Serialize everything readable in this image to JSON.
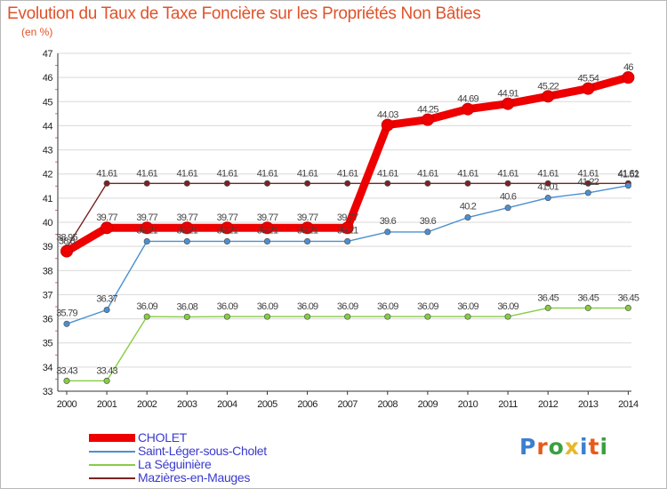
{
  "header": {
    "title": "Evolution du Taux de Taxe Foncière sur les Propriétés Non Bâties",
    "subtitle": "(en %)"
  },
  "colors": {
    "title": "#e0522a",
    "legend_text": "#3a3acf",
    "grid": "#d9d9d9"
  },
  "chart_data": {
    "type": "line",
    "title": "Evolution du Taux de Taxe Foncière sur les Propriétés Non Bâties",
    "ylabel": "(en %)",
    "xlabel": "",
    "x": [
      "2000",
      "2001",
      "2002",
      "2003",
      "2004",
      "2005",
      "2006",
      "2007",
      "2008",
      "2009",
      "2010",
      "2011",
      "2012",
      "2013",
      "2014"
    ],
    "ylim": [
      33,
      47
    ],
    "yticks": [
      33,
      34,
      35,
      36,
      37,
      38,
      39,
      40,
      41,
      42,
      43,
      44,
      45,
      46,
      47
    ],
    "grid": "horizontal",
    "legend_position": "bottom-left",
    "series": [
      {
        "name": "CHOLET",
        "color": "#ee0000",
        "values": [
          38.8,
          39.77,
          39.77,
          39.77,
          39.77,
          39.77,
          39.77,
          39.77,
          44.03,
          44.25,
          44.69,
          44.91,
          45.22,
          45.54,
          46
        ],
        "labels": [
          "38.8",
          "39.77",
          "39.77",
          "39.77",
          "39.77",
          "39.77",
          "39.77",
          "39.77",
          "44.03",
          "44.25",
          "44.69",
          "44.91",
          "45.22",
          "45.54",
          "46"
        ]
      },
      {
        "name": "Saint-Léger-sous-Cholet",
        "color": "#4a90d0",
        "values": [
          35.79,
          36.37,
          39.21,
          39.21,
          39.21,
          39.21,
          39.21,
          39.21,
          39.6,
          39.6,
          40.2,
          40.6,
          41.01,
          41.22,
          41.52
        ],
        "labels": [
          "35.79",
          "36.37",
          "39.21",
          "39.21",
          "39.21",
          "39.21",
          "39.21",
          "39.21",
          "39.6",
          "39.6",
          "40.2",
          "40.6",
          "41.01",
          "41.22",
          "41.52"
        ]
      },
      {
        "name": "La Séguinière",
        "color": "#88cc44",
        "values": [
          33.43,
          33.43,
          36.09,
          36.08,
          36.09,
          36.09,
          36.09,
          36.09,
          36.09,
          36.09,
          36.09,
          36.09,
          36.45,
          36.45,
          36.45
        ],
        "labels": [
          "33.43",
          "33.43",
          "36.09",
          "36.08",
          "36.09",
          "36.09",
          "36.09",
          "36.09",
          "36.09",
          "36.09",
          "36.09",
          "36.09",
          "36.45",
          "36.45",
          "36.45"
        ]
      },
      {
        "name": "Mazières-en-Mauges",
        "color": "#7a2222",
        "values": [
          38.95,
          41.61,
          41.61,
          41.61,
          41.61,
          41.61,
          41.61,
          41.61,
          41.61,
          41.61,
          41.61,
          41.61,
          41.61,
          41.61,
          41.61
        ],
        "labels": [
          "38.95",
          "41.61",
          "41.61",
          "41.61",
          "41.61",
          "41.61",
          "41.61",
          "41.61",
          "41.61",
          "41.61",
          "41.61",
          "41.61",
          "41.61",
          "41.61",
          "41.61"
        ]
      }
    ]
  },
  "legend": {
    "items": [
      {
        "label": "CHOLET",
        "color": "#ee0000"
      },
      {
        "label": "Saint-Léger-sous-Cholet",
        "color": "#4a90d0"
      },
      {
        "label": "La Séguinière",
        "color": "#88cc44"
      },
      {
        "label": "Mazières-en-Mauges",
        "color": "#7a2222"
      }
    ]
  },
  "logo": {
    "letters": [
      "P",
      "r",
      "o",
      "x",
      "i",
      "t",
      "i"
    ],
    "colors": [
      "#3a7fd0",
      "#e85a1a",
      "#3aa040",
      "#e8b82a",
      "#3a7fd0",
      "#e85a1a",
      "#3aa040"
    ]
  }
}
